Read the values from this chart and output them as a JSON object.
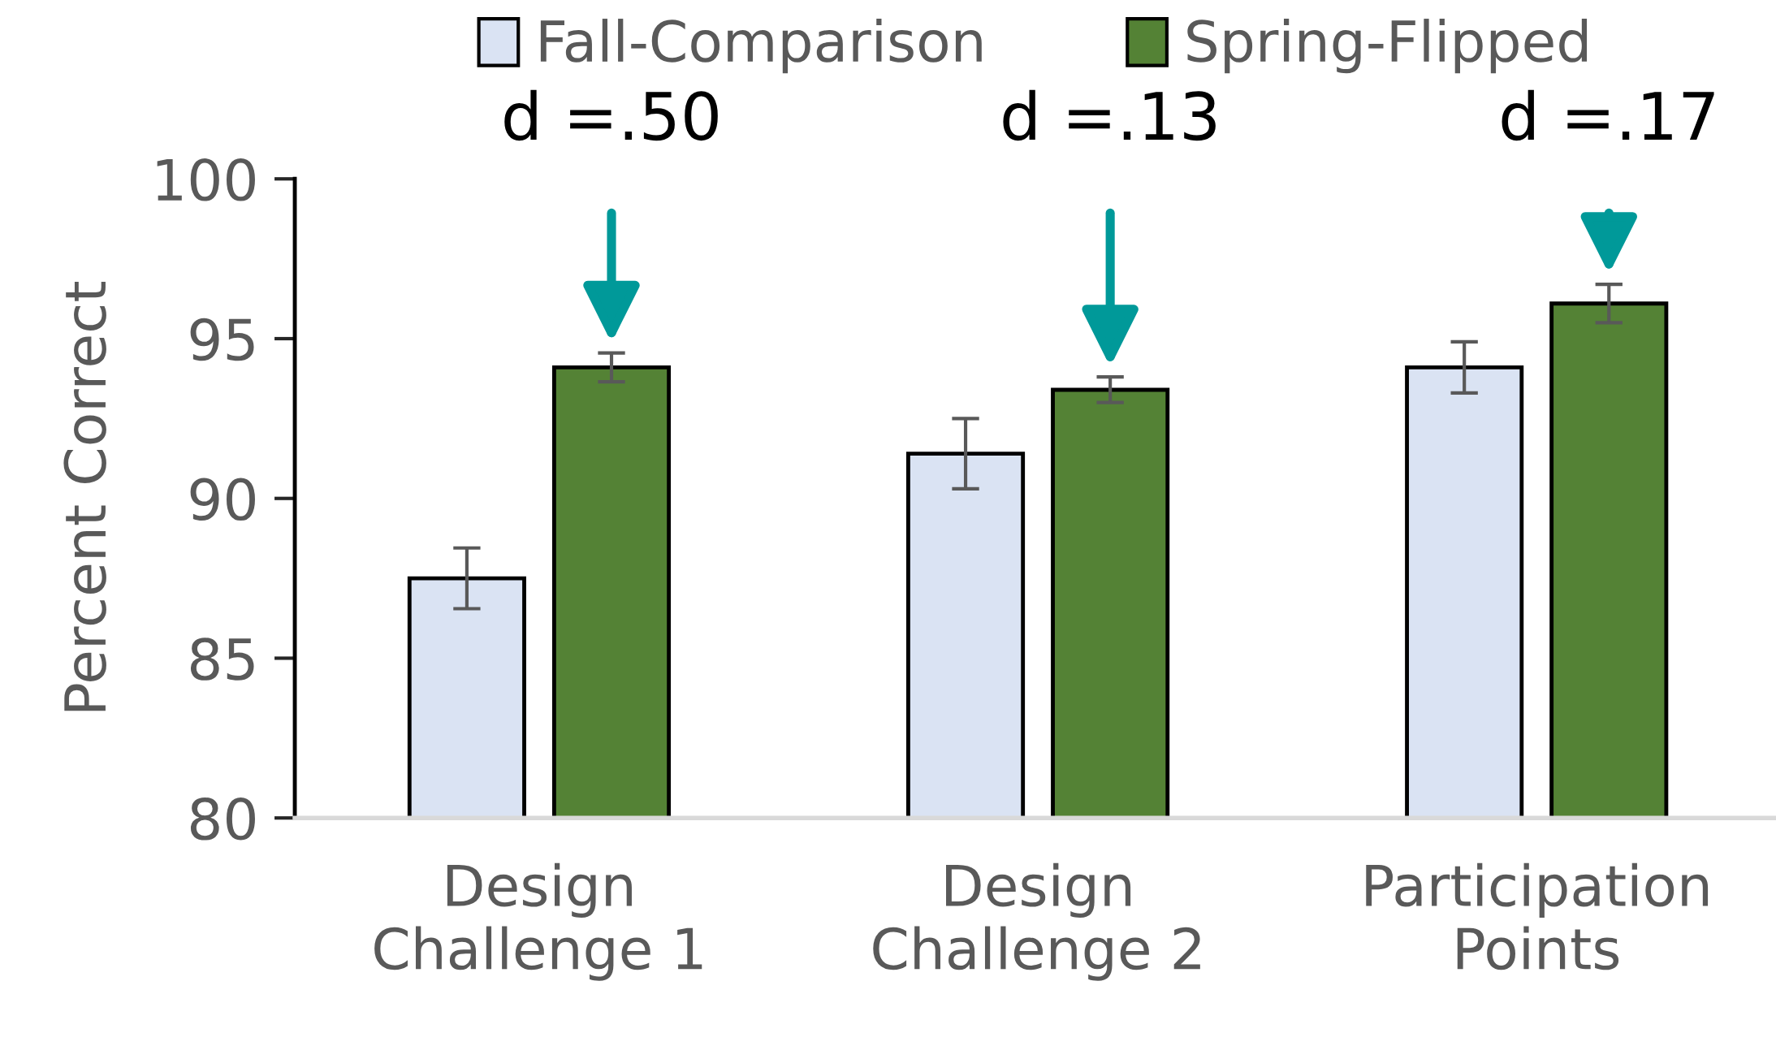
{
  "chart_data": {
    "type": "bar",
    "ylabel": "Percent Correct",
    "categories": [
      "Design\nChallenge 1",
      "Design\nChallenge 2",
      "Participation\nPoints"
    ],
    "series": [
      {
        "name": "Fall-Comparison",
        "color": "#dae3f3",
        "values": [
          87.5,
          91.4,
          94.1
        ],
        "errors": [
          0.95,
          1.1,
          0.8
        ]
      },
      {
        "name": "Spring-Flipped",
        "color": "#548235",
        "values": [
          94.1,
          93.4,
          96.1
        ],
        "errors": [
          0.45,
          0.4,
          0.6
        ]
      }
    ],
    "ylim": [
      80,
      100
    ],
    "yticks": [
      80,
      85,
      90,
      95,
      100
    ],
    "grid": false,
    "legend": "top",
    "annotations": [
      "d =.50",
      "d =.13",
      "d =.17"
    ]
  }
}
